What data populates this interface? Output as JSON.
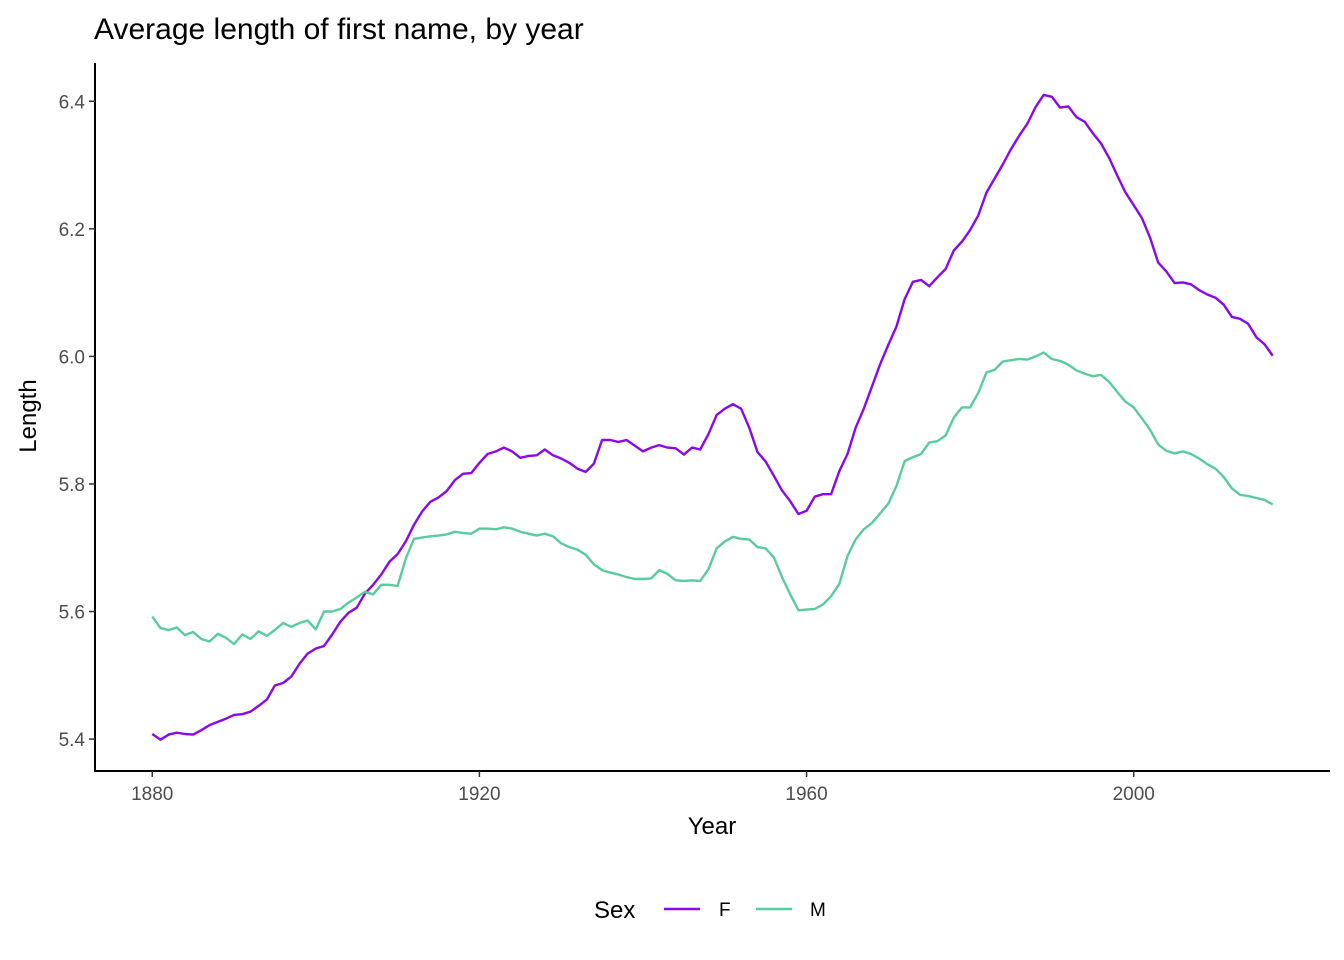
{
  "chart_data": {
    "type": "line",
    "title": "Average length of first name, by year",
    "xlabel": "Year",
    "ylabel": "Length",
    "xlim": [
      1873,
      2024
    ],
    "ylim": [
      5.35,
      6.46
    ],
    "xticks": [
      1880,
      1920,
      1960,
      2000
    ],
    "yticks": [
      5.4,
      5.6,
      5.8,
      6.0,
      6.2,
      6.4
    ],
    "xtick_labels": [
      "1880",
      "1920",
      "1960",
      "2000"
    ],
    "ytick_labels": [
      "5.4",
      "5.6",
      "5.8",
      "6.0",
      "6.2",
      "6.4"
    ],
    "grid": false,
    "legend": {
      "title": "Sex",
      "position": "bottom"
    },
    "series": [
      {
        "name": "F",
        "color": "#8a08ea",
        "x": [
          1880,
          1881,
          1882,
          1883,
          1884,
          1885,
          1886,
          1887,
          1888,
          1889,
          1890,
          1891,
          1892,
          1893,
          1894,
          1895,
          1896,
          1897,
          1898,
          1899,
          1900,
          1901,
          1902,
          1903,
          1904,
          1905,
          1906,
          1907,
          1908,
          1909,
          1910,
          1911,
          1912,
          1913,
          1914,
          1915,
          1916,
          1917,
          1918,
          1919,
          1920,
          1921,
          1922,
          1923,
          1924,
          1925,
          1926,
          1927,
          1928,
          1929,
          1930,
          1931,
          1932,
          1933,
          1934,
          1935,
          1936,
          1937,
          1938,
          1939,
          1940,
          1941,
          1942,
          1943,
          1944,
          1945,
          1946,
          1947,
          1948,
          1949,
          1950,
          1951,
          1952,
          1953,
          1954,
          1955,
          1956,
          1957,
          1958,
          1959,
          1960,
          1961,
          1962,
          1963,
          1964,
          1965,
          1966,
          1967,
          1968,
          1969,
          1970,
          1971,
          1972,
          1973,
          1974,
          1975,
          1976,
          1977,
          1978,
          1979,
          1980,
          1981,
          1982,
          1983,
          1984,
          1985,
          1986,
          1987,
          1988,
          1989,
          1990,
          1991,
          1992,
          1993,
          1994,
          1995,
          1996,
          1997,
          1998,
          1999,
          2000,
          2001,
          2002,
          2003,
          2004,
          2005,
          2006,
          2007,
          2008,
          2009,
          2010,
          2011,
          2012,
          2013,
          2014,
          2015,
          2016,
          2017
        ],
        "values": [
          5.408,
          5.399,
          5.407,
          5.41,
          5.408,
          5.407,
          5.414,
          5.422,
          5.427,
          5.432,
          5.438,
          5.439,
          5.443,
          5.452,
          5.462,
          5.484,
          5.488,
          5.498,
          5.518,
          5.534,
          5.542,
          5.546,
          5.564,
          5.584,
          5.598,
          5.606,
          5.628,
          5.642,
          5.658,
          5.678,
          5.69,
          5.71,
          5.736,
          5.757,
          5.772,
          5.779,
          5.789,
          5.806,
          5.816,
          5.817,
          5.833,
          5.847,
          5.851,
          5.857,
          5.851,
          5.841,
          5.844,
          5.845,
          5.854,
          5.845,
          5.84,
          5.833,
          5.824,
          5.819,
          5.832,
          5.869,
          5.869,
          5.866,
          5.869,
          5.86,
          5.851,
          5.857,
          5.861,
          5.857,
          5.856,
          5.846,
          5.857,
          5.854,
          5.878,
          5.908,
          5.918,
          5.925,
          5.918,
          5.888,
          5.85,
          5.835,
          5.813,
          5.79,
          5.773,
          5.753,
          5.758,
          5.78,
          5.784,
          5.784,
          5.82,
          5.847,
          5.888,
          5.918,
          5.953,
          5.988,
          6.018,
          6.047,
          6.09,
          6.117,
          6.12,
          6.11,
          6.124,
          6.137,
          6.166,
          6.18,
          6.198,
          6.221,
          6.257,
          6.279,
          6.301,
          6.325,
          6.346,
          6.365,
          6.391,
          6.41,
          6.407,
          6.39,
          6.392,
          6.375,
          6.368,
          6.35,
          6.334,
          6.311,
          6.283,
          6.257,
          6.237,
          6.217,
          6.186,
          6.147,
          6.133,
          6.115,
          6.116,
          6.113,
          6.104,
          6.097,
          6.092,
          6.081,
          6.062,
          6.059,
          6.051,
          6.03,
          6.019,
          6.001
        ]
      },
      {
        "name": "M",
        "color": "#58cc9c",
        "x": [
          1880,
          1881,
          1882,
          1883,
          1884,
          1885,
          1886,
          1887,
          1888,
          1889,
          1890,
          1891,
          1892,
          1893,
          1894,
          1895,
          1896,
          1897,
          1898,
          1899,
          1900,
          1901,
          1902,
          1903,
          1904,
          1905,
          1906,
          1907,
          1908,
          1909,
          1910,
          1911,
          1912,
          1913,
          1914,
          1915,
          1916,
          1917,
          1918,
          1919,
          1920,
          1921,
          1922,
          1923,
          1924,
          1925,
          1926,
          1927,
          1928,
          1929,
          1930,
          1931,
          1932,
          1933,
          1934,
          1935,
          1936,
          1937,
          1938,
          1939,
          1940,
          1941,
          1942,
          1943,
          1944,
          1945,
          1946,
          1947,
          1948,
          1949,
          1950,
          1951,
          1952,
          1953,
          1954,
          1955,
          1956,
          1957,
          1958,
          1959,
          1960,
          1961,
          1962,
          1963,
          1964,
          1965,
          1966,
          1967,
          1968,
          1969,
          1970,
          1971,
          1972,
          1973,
          1974,
          1975,
          1976,
          1977,
          1978,
          1979,
          1980,
          1981,
          1982,
          1983,
          1984,
          1985,
          1986,
          1987,
          1988,
          1989,
          1990,
          1991,
          1992,
          1993,
          1994,
          1995,
          1996,
          1997,
          1998,
          1999,
          2000,
          2001,
          2002,
          2003,
          2004,
          2005,
          2006,
          2007,
          2008,
          2009,
          2010,
          2011,
          2012,
          2013,
          2014,
          2015,
          2016,
          2017
        ],
        "values": [
          5.592,
          5.574,
          5.571,
          5.575,
          5.563,
          5.568,
          5.557,
          5.553,
          5.565,
          5.559,
          5.549,
          5.564,
          5.557,
          5.569,
          5.562,
          5.571,
          5.582,
          5.576,
          5.582,
          5.586,
          5.572,
          5.6,
          5.6,
          5.604,
          5.614,
          5.622,
          5.631,
          5.627,
          5.642,
          5.642,
          5.64,
          5.683,
          5.714,
          5.716,
          5.718,
          5.719,
          5.721,
          5.725,
          5.723,
          5.722,
          5.73,
          5.73,
          5.729,
          5.732,
          5.73,
          5.725,
          5.722,
          5.719,
          5.722,
          5.718,
          5.707,
          5.701,
          5.697,
          5.689,
          5.674,
          5.665,
          5.661,
          5.658,
          5.654,
          5.651,
          5.651,
          5.652,
          5.665,
          5.659,
          5.649,
          5.648,
          5.649,
          5.648,
          5.666,
          5.699,
          5.71,
          5.717,
          5.714,
          5.713,
          5.701,
          5.699,
          5.685,
          5.654,
          5.627,
          5.602,
          5.603,
          5.604,
          5.611,
          5.624,
          5.643,
          5.687,
          5.713,
          5.729,
          5.739,
          5.754,
          5.769,
          5.797,
          5.836,
          5.842,
          5.847,
          5.865,
          5.867,
          5.876,
          5.904,
          5.92,
          5.92,
          5.943,
          5.975,
          5.979,
          5.992,
          5.994,
          5.996,
          5.995,
          6.0,
          6.006,
          5.996,
          5.993,
          5.987,
          5.978,
          5.973,
          5.969,
          5.971,
          5.96,
          5.944,
          5.929,
          5.92,
          5.903,
          5.885,
          5.862,
          5.852,
          5.848,
          5.851,
          5.847,
          5.84,
          5.831,
          5.824,
          5.811,
          5.793,
          5.783,
          5.781,
          5.778,
          5.775,
          5.768
        ]
      }
    ]
  }
}
